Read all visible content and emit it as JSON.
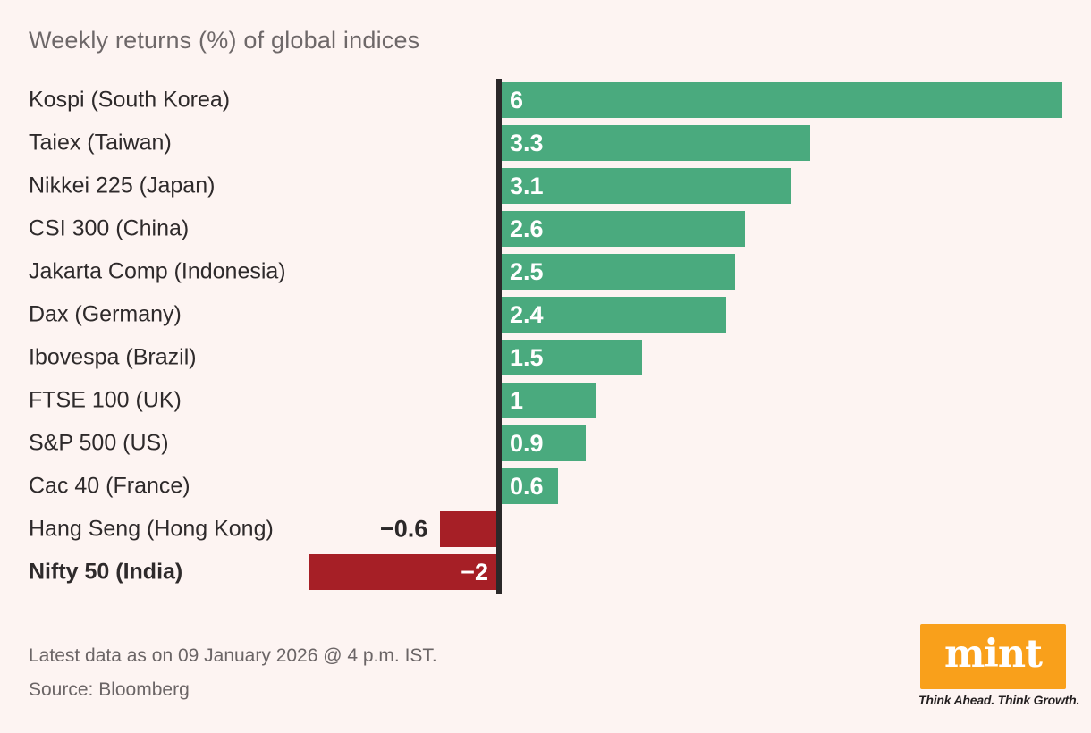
{
  "title": "Weekly returns (%) of global indices",
  "chart_data": {
    "type": "bar",
    "orientation": "horizontal",
    "title": "Weekly returns (%) of global indices",
    "categories": [
      "Kospi (South Korea)",
      "Taiex (Taiwan)",
      "Nikkei 225 (Japan)",
      "CSI 300 (China)",
      "Jakarta Comp (Indonesia)",
      "Dax (Germany)",
      "Ibovespa (Brazil)",
      "FTSE 100 (UK)",
      "S&P 500 (US)",
      "Cac 40 (France)",
      "Hang Seng (Hong Kong)",
      "Nifty 50 (India)"
    ],
    "values": [
      6,
      3.3,
      3.1,
      2.6,
      2.5,
      2.4,
      1.5,
      1,
      0.9,
      0.6,
      -0.6,
      -2
    ],
    "value_labels": [
      "6",
      "3.3",
      "3.1",
      "2.6",
      "2.5",
      "2.4",
      "1.5",
      "1",
      "0.9",
      "0.6",
      "−0.6",
      "−2"
    ],
    "highlight_category": "Nifty 50 (India)",
    "xlim": [
      -2,
      6
    ],
    "grid": false,
    "legend": false,
    "colors": {
      "positive": "#4aaa7e",
      "negative": "#a61f26",
      "axis": "#2b2829",
      "category_text": "#2e2a2b",
      "value_text_inside": "#ffffff",
      "value_text_outside": "#2b2829"
    }
  },
  "footer": {
    "note": "Latest data as on 09 January 2026 @ 4 p.m. IST.",
    "source": "Source: Bloomberg"
  },
  "branding": {
    "logo_text": "mint",
    "tagline": "Think Ahead. Think Growth.",
    "logo_bg": "#f9a01b",
    "tagline_color": "#231f20"
  }
}
